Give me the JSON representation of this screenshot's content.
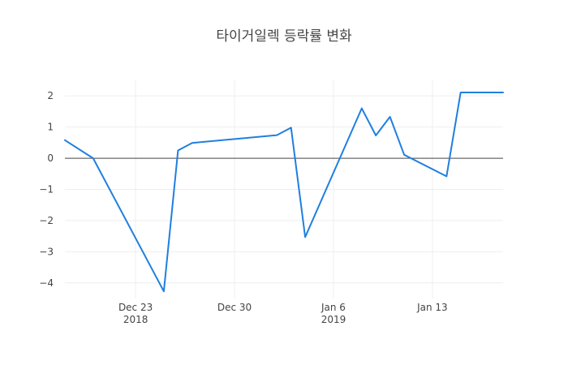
{
  "chart_data": {
    "type": "line",
    "title": "타이거일렉 등락률 변화",
    "xlabel": "",
    "ylabel": "",
    "x": [
      "2018-12-18",
      "2018-12-20",
      "2018-12-25",
      "2018-12-26",
      "2018-12-27",
      "2019-01-02",
      "2019-01-03",
      "2019-01-04",
      "2019-01-08",
      "2019-01-09",
      "2019-01-10",
      "2019-01-11",
      "2019-01-14",
      "2019-01-15",
      "2019-01-18"
    ],
    "series": [
      {
        "name": "",
        "values": [
          0.58,
          0.0,
          -4.27,
          0.25,
          0.49,
          0.74,
          0.98,
          -2.53,
          1.6,
          0.73,
          1.33,
          0.11,
          -0.58,
          2.11,
          2.11
        ]
      }
    ],
    "xlim": [
      "2018-12-18",
      "2019-01-18"
    ],
    "ylim": [
      -4.5,
      2.5
    ],
    "yticks": [
      2,
      1,
      0,
      -1,
      -2,
      -3,
      -4
    ],
    "ytick_labels": [
      "2",
      "1",
      "0",
      "−1",
      "−2",
      "−3",
      "−4"
    ],
    "xticks": [
      {
        "date": "2018-12-23",
        "label": "Dec 23",
        "sublabel": "2018"
      },
      {
        "date": "2018-12-30",
        "label": "Dec 30",
        "sublabel": ""
      },
      {
        "date": "2019-01-06",
        "label": "Jan 6",
        "sublabel": "2019"
      },
      {
        "date": "2019-01-13",
        "label": "Jan 13",
        "sublabel": ""
      }
    ],
    "grid": true,
    "zero_line": true,
    "line_color": "#1f7fe0",
    "grid_color": "#eeeeee",
    "zero_line_color": "#444444"
  }
}
